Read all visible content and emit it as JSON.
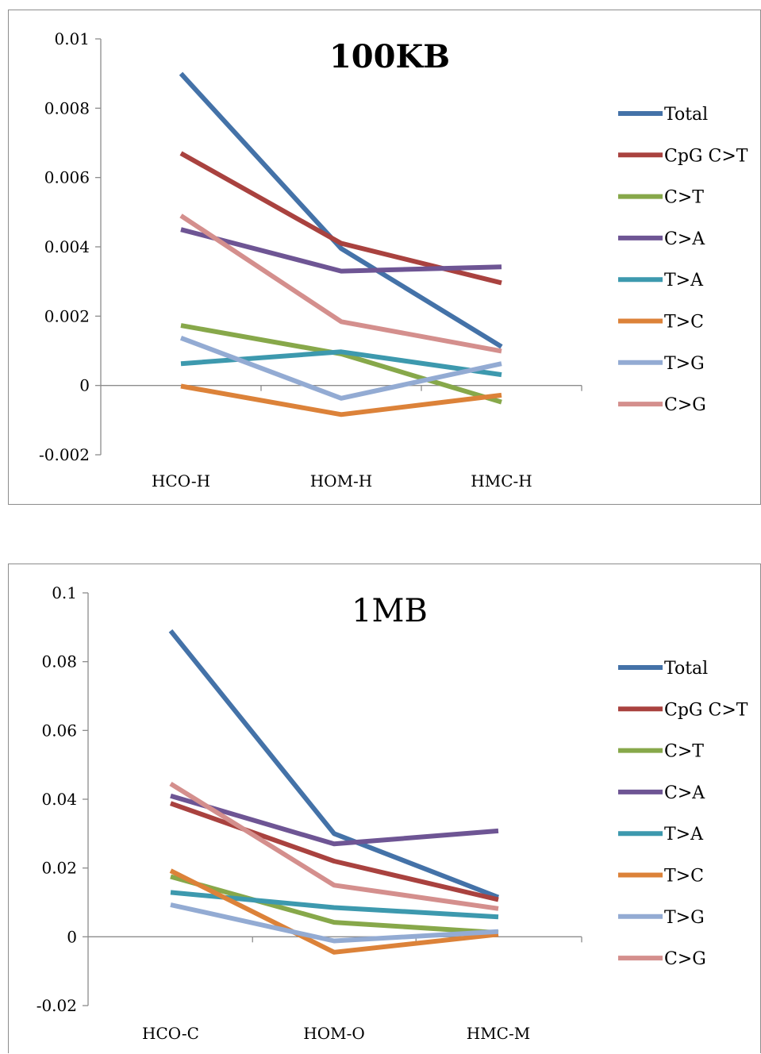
{
  "colors": {
    "Total": "#4472a8",
    "CpG C>T": "#a9423f",
    "C>T": "#87a84a",
    "C>A": "#6e5594",
    "T>A": "#3d99ae",
    "T>C": "#dc8239",
    "T>G": "#93abd3",
    "C>G": "#d48f8d"
  },
  "chart_data": [
    {
      "type": "line",
      "title": "100KB",
      "title_bold": true,
      "categories": [
        "HCO-H",
        "HOM-H",
        "HMC-H"
      ],
      "ylim": [
        -0.002,
        0.01
      ],
      "yticks": [
        -0.002,
        0,
        0.002,
        0.004,
        0.006,
        0.008,
        0.01
      ],
      "ytick_labels": [
        "-0.002",
        "0",
        "0.002",
        "0.004",
        "0.006",
        "0.008",
        "0.01"
      ],
      "grid": false,
      "legend_position": "right",
      "series": [
        {
          "name": "Total",
          "values": [
            0.009,
            0.00395,
            0.00112
          ]
        },
        {
          "name": "CpG C>T",
          "values": [
            0.0067,
            0.0041,
            0.00296
          ]
        },
        {
          "name": "C>T",
          "values": [
            0.00173,
            0.00091,
            -0.00048
          ]
        },
        {
          "name": "C>A",
          "values": [
            0.0045,
            0.0033,
            0.00342
          ]
        },
        {
          "name": "T>A",
          "values": [
            0.00063,
            0.00097,
            0.00031
          ]
        },
        {
          "name": "T>C",
          "values": [
            -2e-05,
            -0.00084,
            -0.00028
          ]
        },
        {
          "name": "T>G",
          "values": [
            0.00137,
            -0.00037,
            0.00063
          ]
        },
        {
          "name": "C>G",
          "values": [
            0.0049,
            0.00184,
            0.00099
          ]
        }
      ]
    },
    {
      "type": "line",
      "title": "1MB",
      "title_bold": false,
      "categories": [
        "HCO-C",
        "HOM-O",
        "HMC-M"
      ],
      "ylim": [
        -0.02,
        0.1
      ],
      "yticks": [
        -0.02,
        0,
        0.02,
        0.04,
        0.06,
        0.08,
        0.1
      ],
      "ytick_labels": [
        "-0.02",
        "0",
        "0.02",
        "0.04",
        "0.06",
        "0.08",
        "0.1"
      ],
      "grid": false,
      "legend_position": "right",
      "series": [
        {
          "name": "Total",
          "values": [
            0.089,
            0.03,
            0.0115
          ]
        },
        {
          "name": "CpG C>T",
          "values": [
            0.0388,
            0.022,
            0.0108
          ]
        },
        {
          "name": "C>T",
          "values": [
            0.0175,
            0.0042,
            0.0012
          ]
        },
        {
          "name": "C>A",
          "values": [
            0.041,
            0.027,
            0.0308
          ]
        },
        {
          "name": "T>A",
          "values": [
            0.0129,
            0.0085,
            0.0058
          ]
        },
        {
          "name": "T>C",
          "values": [
            0.0192,
            -0.0045,
            0.0007
          ]
        },
        {
          "name": "T>G",
          "values": [
            0.0093,
            -0.0012,
            0.0015
          ]
        },
        {
          "name": "C>G",
          "values": [
            0.0445,
            0.015,
            0.0082
          ]
        }
      ]
    }
  ]
}
